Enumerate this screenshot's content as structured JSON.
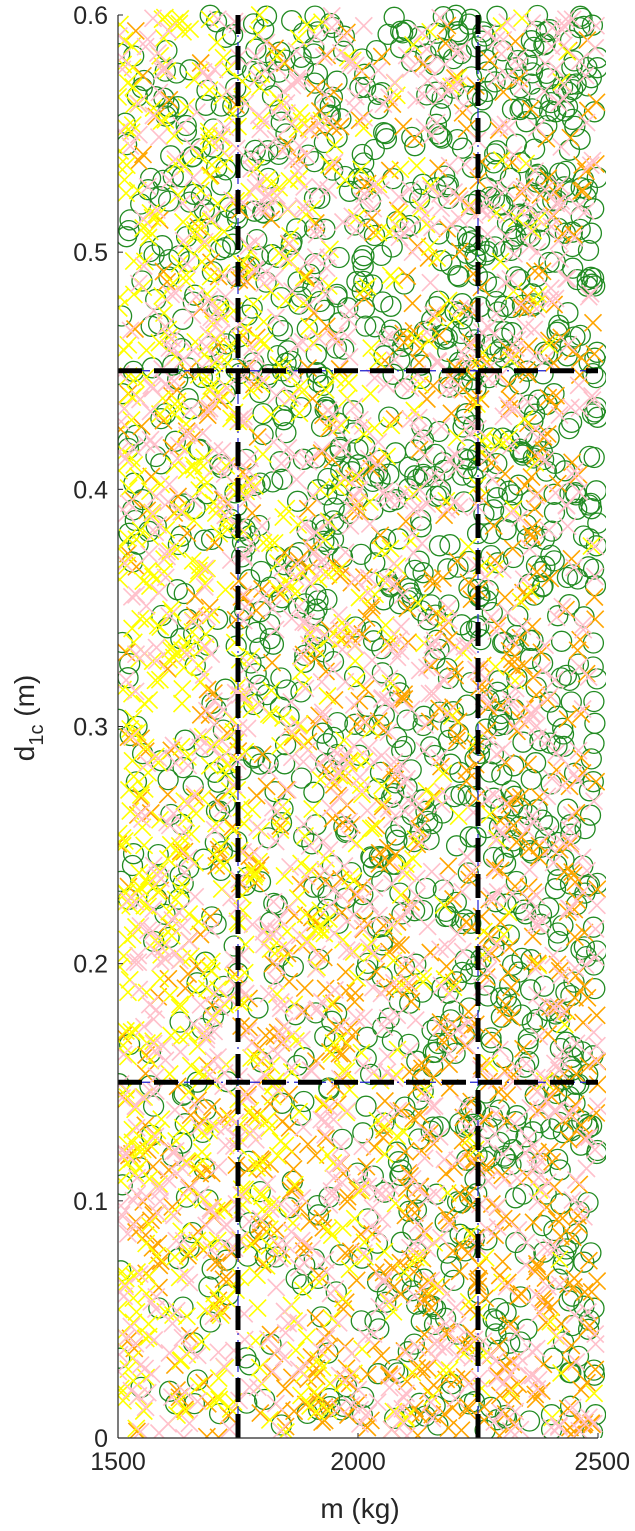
{
  "chart_data": {
    "type": "scatter",
    "title": "",
    "xlabel": "m (kg)",
    "ylabel": {
      "base": "d",
      "subscript": "1c",
      "suffix": " (m)"
    },
    "xlim": [
      1500,
      2500
    ],
    "ylim": [
      0,
      0.6
    ],
    "xticks": [
      1500,
      2000,
      2500
    ],
    "xtick_labels": [
      "1500",
      "2000",
      "2500"
    ],
    "yticks": [
      0,
      0.1,
      0.2,
      0.3,
      0.4,
      0.5,
      0.6
    ],
    "ytick_labels": [
      "0",
      "0.1",
      "0.2",
      "0.3",
      "0.4",
      "0.5",
      "0.6"
    ],
    "grid": false,
    "legend": "none",
    "reference_lines": {
      "vertical_x": [
        1750,
        2250
      ],
      "horizontal_y": [
        0.15,
        0.45
      ],
      "dashed_color": "#000000",
      "dashdot_color": "#1f1fcf"
    },
    "series": [
      {
        "marker": "circle",
        "color": "#228b22",
        "approx_points": 1500,
        "concentration": "high m and high d1c"
      },
      {
        "marker": "x",
        "color": "#ffa500",
        "approx_points": 900,
        "concentration": "high m and low d1c"
      },
      {
        "marker": "x",
        "color": "#ffff00",
        "approx_points": 900,
        "concentration": "low m"
      },
      {
        "marker": "x",
        "color": "#ffc0cb",
        "approx_points": 1300,
        "concentration": "uniform"
      }
    ]
  }
}
